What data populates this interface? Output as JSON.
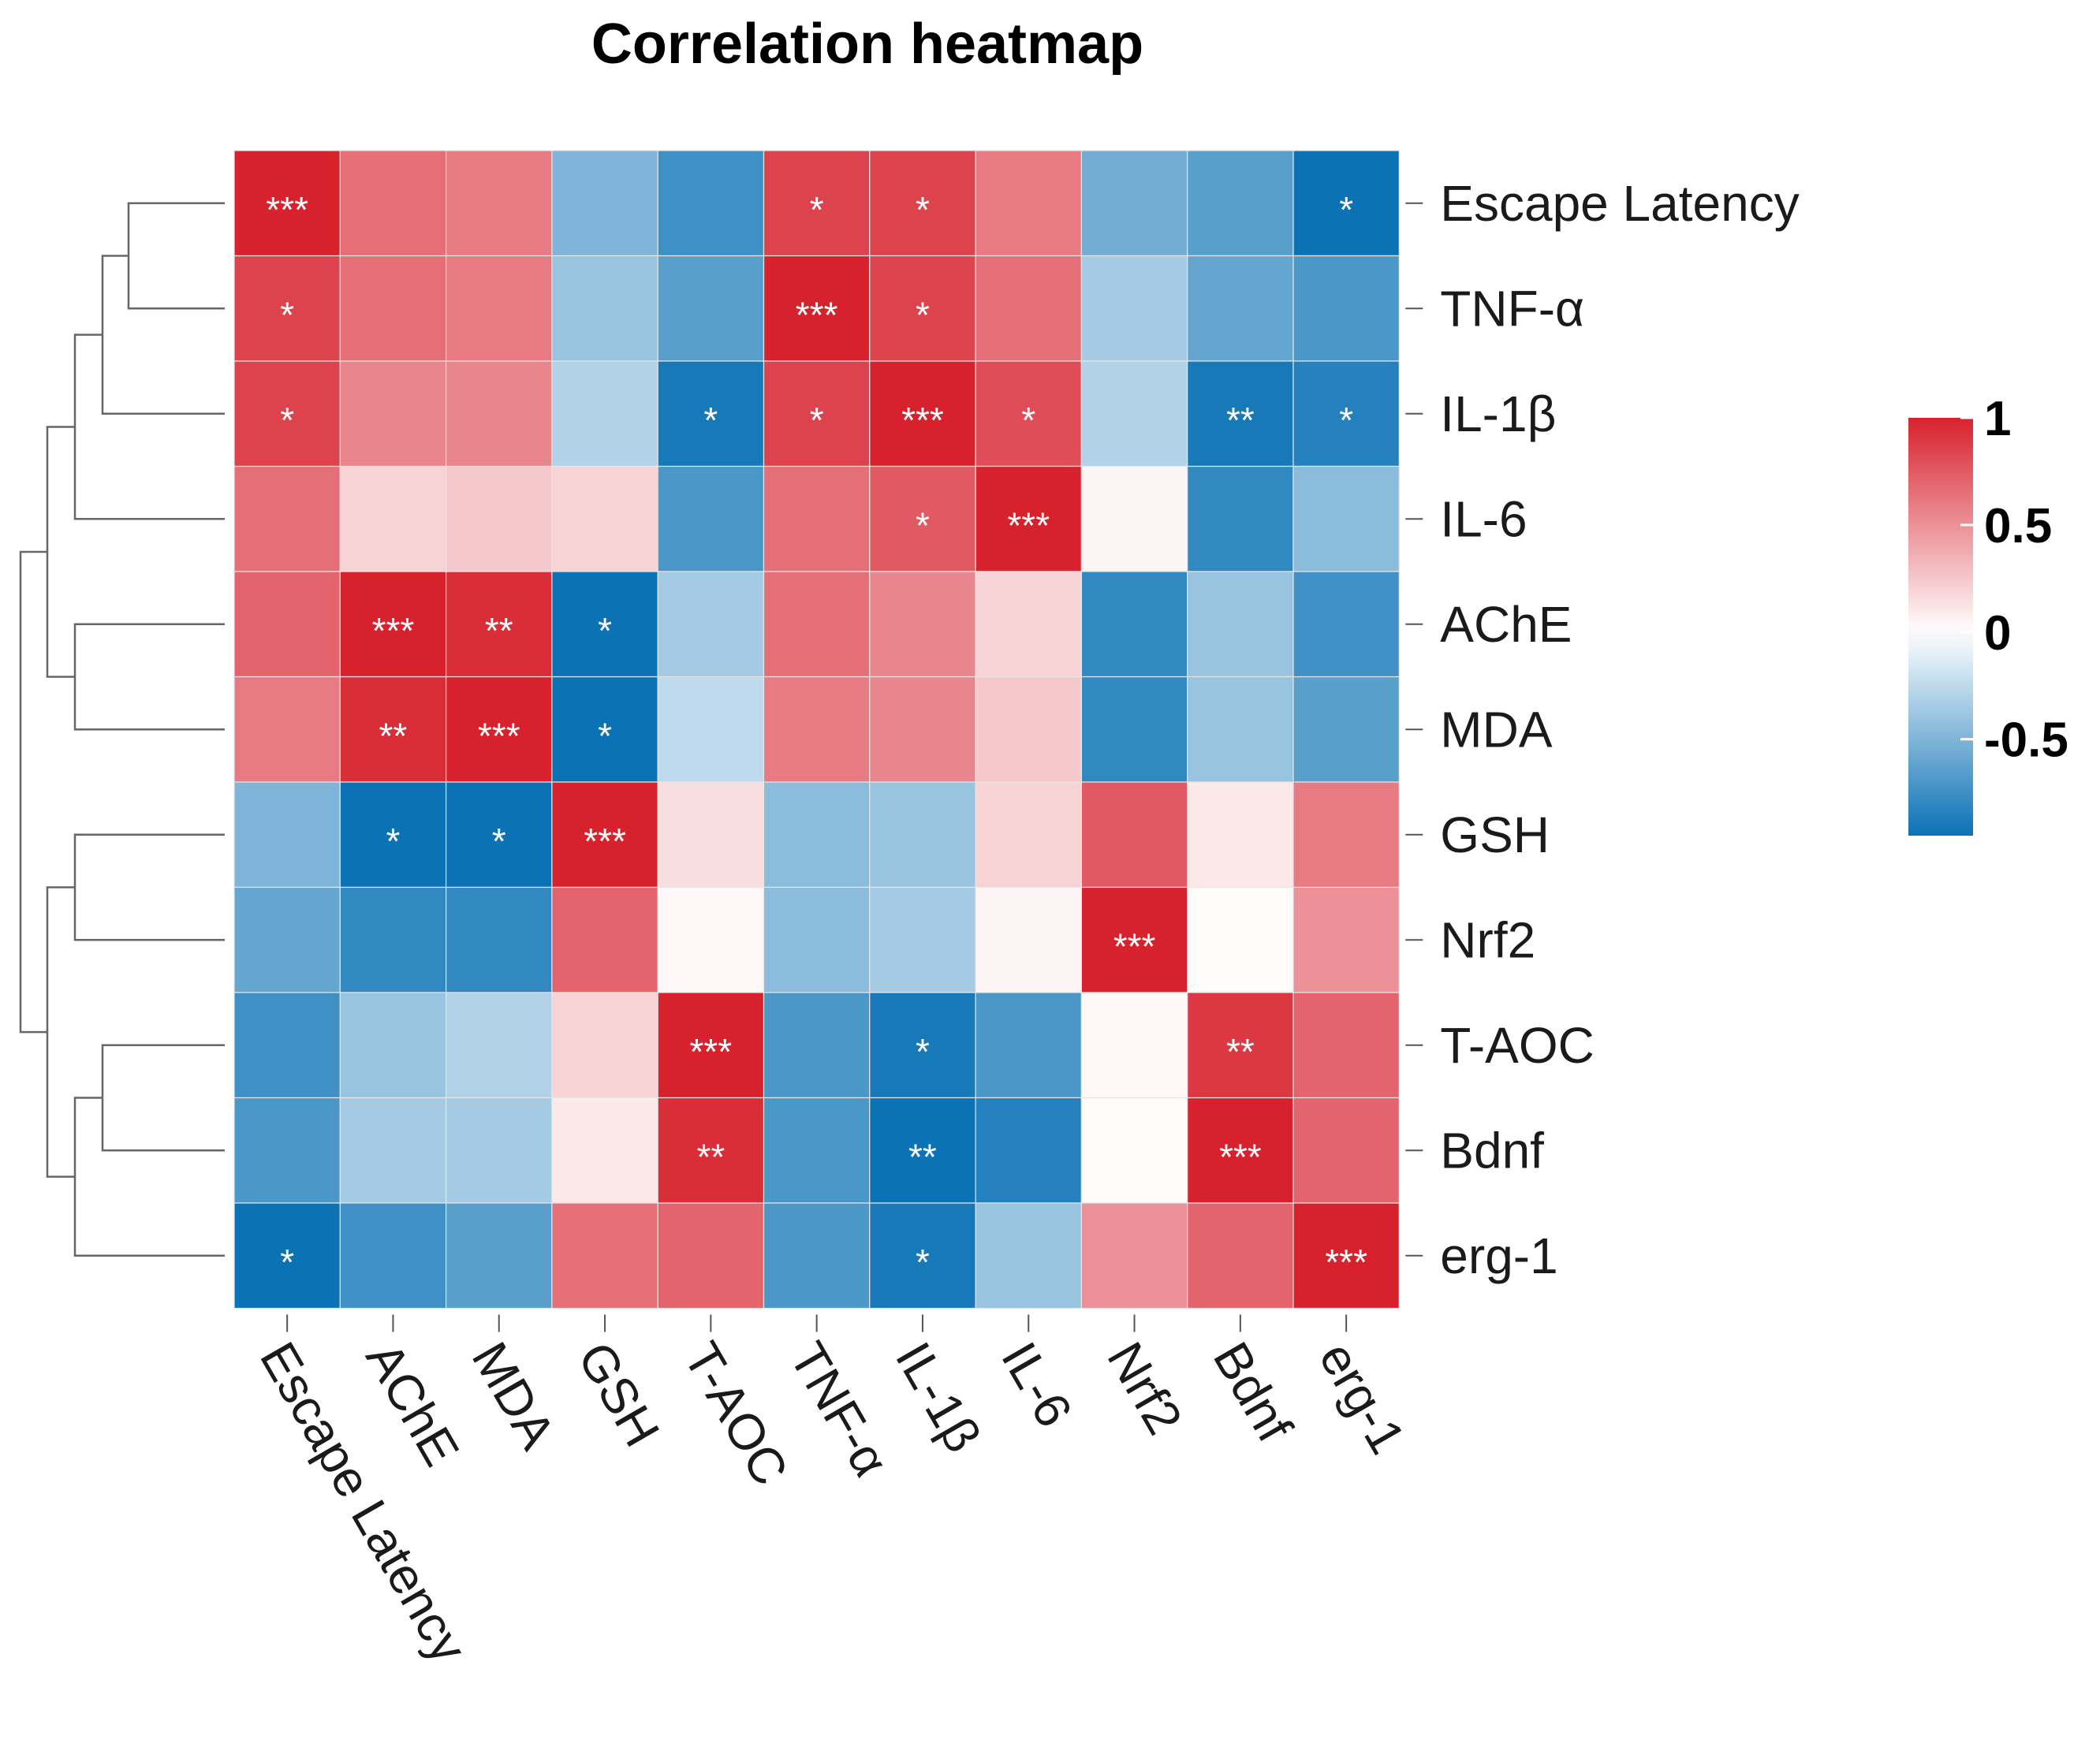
{
  "chart_data": {
    "type": "heatmap",
    "title": "Correlation heatmap",
    "rows": [
      "Escape Latency",
      "TNF-α",
      "IL-1β",
      "IL-6",
      "AChE",
      "MDA",
      "GSH",
      "Nrf2",
      "T-AOC",
      "Bdnf",
      "erg-1"
    ],
    "columns": [
      "Escape Latency",
      "AChE",
      "MDA",
      "GSH",
      "T-AOC",
      "TNF-α",
      "IL-1β",
      "IL-6",
      "Nrf2",
      "Bdnf",
      "erg-1"
    ],
    "values": [
      [
        1.0,
        0.65,
        0.6,
        -0.5,
        -0.75,
        0.85,
        0.85,
        0.6,
        -0.55,
        -0.65,
        -0.95
      ],
      [
        0.85,
        0.65,
        0.6,
        -0.4,
        -0.65,
        1.0,
        0.85,
        0.65,
        -0.35,
        -0.6,
        -0.7
      ],
      [
        0.85,
        0.55,
        0.55,
        -0.3,
        -0.9,
        0.85,
        1.0,
        0.8,
        -0.3,
        -0.9,
        -0.85
      ],
      [
        0.65,
        0.2,
        0.25,
        0.2,
        -0.7,
        0.65,
        0.75,
        1.0,
        0.05,
        -0.8,
        -0.45
      ],
      [
        0.7,
        1.0,
        0.95,
        -0.95,
        -0.35,
        0.65,
        0.55,
        0.2,
        -0.8,
        -0.4,
        -0.75
      ],
      [
        0.6,
        0.95,
        1.0,
        -0.95,
        -0.25,
        0.6,
        0.55,
        0.25,
        -0.8,
        -0.4,
        -0.65
      ],
      [
        -0.5,
        -0.95,
        -0.95,
        1.0,
        0.15,
        -0.45,
        -0.4,
        0.2,
        0.75,
        0.1,
        0.6
      ],
      [
        -0.6,
        -0.8,
        -0.8,
        0.7,
        0.03,
        -0.45,
        -0.35,
        0.05,
        1.0,
        0.02,
        0.5
      ],
      [
        -0.75,
        -0.4,
        -0.3,
        0.2,
        1.0,
        -0.7,
        -0.9,
        -0.7,
        0.03,
        0.9,
        0.7
      ],
      [
        -0.7,
        -0.35,
        -0.35,
        0.1,
        0.95,
        -0.7,
        -0.95,
        -0.85,
        0.02,
        1.0,
        0.7
      ],
      [
        -0.95,
        -0.75,
        -0.65,
        0.65,
        0.7,
        -0.7,
        -0.9,
        -0.4,
        0.5,
        0.7,
        1.0
      ]
    ],
    "significance": [
      [
        "***",
        "",
        "",
        "",
        "",
        "*",
        "*",
        "",
        "",
        "",
        "*"
      ],
      [
        "*",
        "",
        "",
        "",
        "",
        "***",
        "*",
        "",
        "",
        "",
        ""
      ],
      [
        "*",
        "",
        "",
        "",
        "*",
        "*",
        "***",
        "*",
        "",
        "**",
        "*"
      ],
      [
        "",
        "",
        "",
        "",
        "",
        "",
        "*",
        "***",
        "",
        "",
        ""
      ],
      [
        "",
        "***",
        "**",
        "*",
        "",
        "",
        "",
        "",
        "",
        "",
        ""
      ],
      [
        "",
        "**",
        "***",
        "*",
        "",
        "",
        "",
        "",
        "",
        "",
        ""
      ],
      [
        "",
        "*",
        "*",
        "***",
        "",
        "",
        "",
        "",
        "",
        "",
        ""
      ],
      [
        "",
        "",
        "",
        "",
        "",
        "",
        "",
        "",
        "***",
        "",
        ""
      ],
      [
        "",
        "",
        "",
        "",
        "***",
        "",
        "*",
        "",
        "",
        "**",
        ""
      ],
      [
        "",
        "",
        "",
        "",
        "**",
        "",
        "**",
        "",
        "",
        "***",
        ""
      ],
      [
        "*",
        "",
        "",
        "",
        "",
        "",
        "*",
        "",
        "",
        "",
        "***"
      ]
    ],
    "color_scale": {
      "range": [
        -0.95,
        1
      ],
      "ticks": [
        1,
        0.5,
        0,
        -0.5
      ],
      "tick_labels": [
        "1",
        "0.5",
        "0",
        "-0.5"
      ],
      "colors": {
        "low": "#0b72b5",
        "mid": "#ffffff",
        "high": "#d7222e"
      }
    },
    "dendrogram": "row clustering tree on the left"
  }
}
